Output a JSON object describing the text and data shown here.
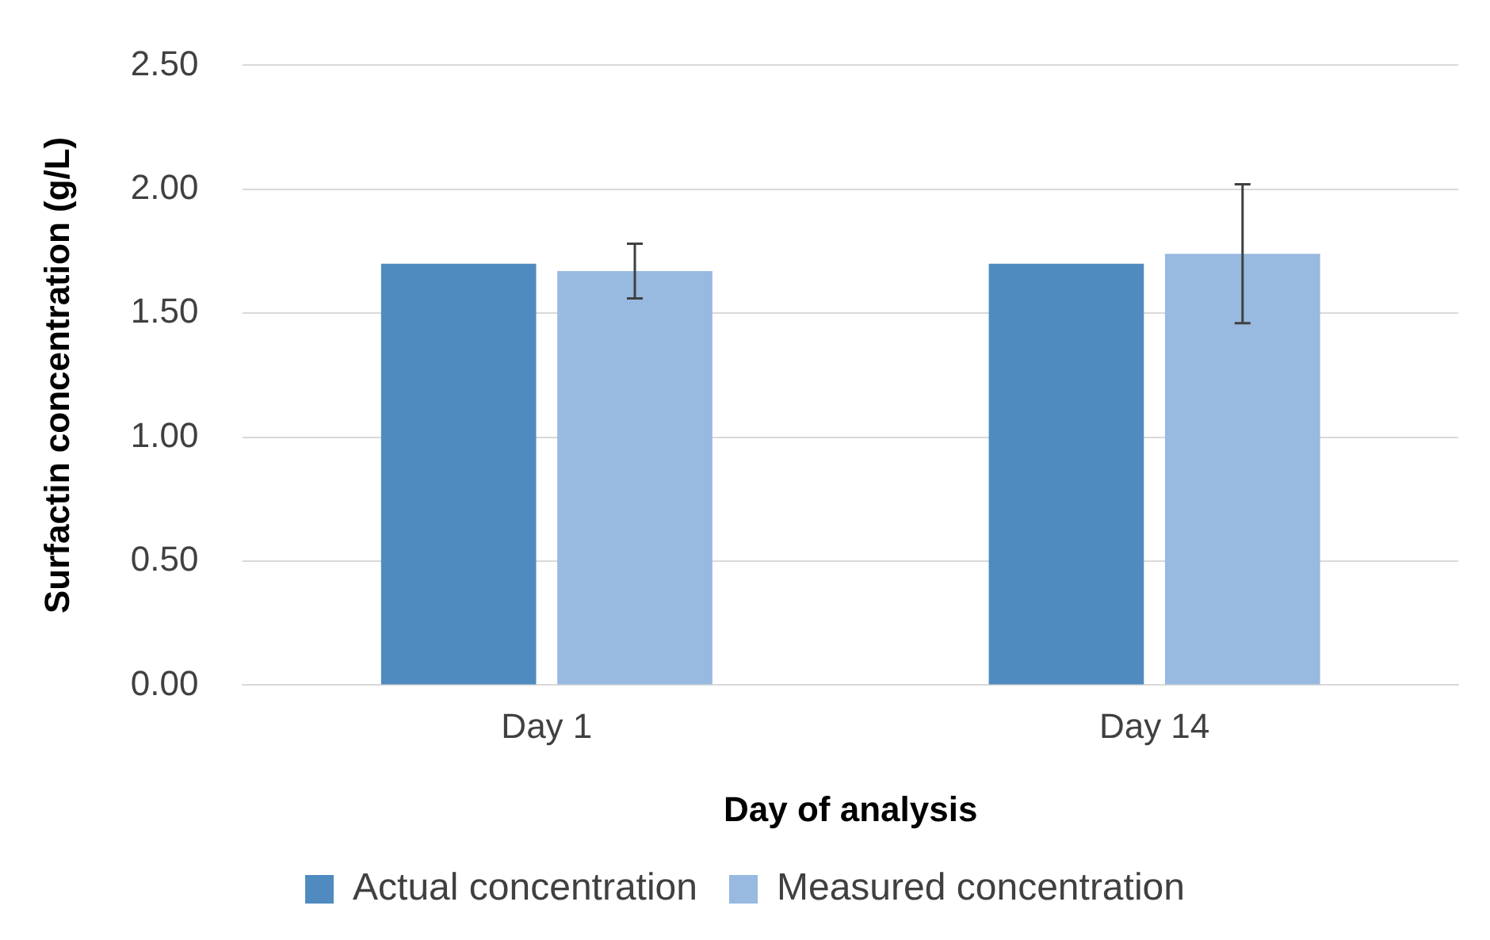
{
  "chart_data": {
    "type": "bar",
    "xlabel": "Day of analysis",
    "ylabel": "Surfactin concentration (g/L)",
    "categories": [
      "Day 1",
      "Day 14"
    ],
    "series": [
      {
        "name": "Actual concentration",
        "color": "#4f8bbf",
        "values": [
          1.7,
          1.7
        ]
      },
      {
        "name": "Measured concentration",
        "color": "#98b9e0",
        "values": [
          1.67,
          1.74
        ],
        "errors": [
          [
            1.56,
            1.78
          ],
          [
            1.46,
            2.02
          ]
        ]
      }
    ],
    "ylim": [
      0,
      2.5
    ],
    "yticks": [
      {
        "value": 0,
        "label": "0.00"
      },
      {
        "value": 0.5,
        "label": "0.50"
      },
      {
        "value": 1,
        "label": "1.00"
      },
      {
        "value": 1.5,
        "label": "1.50"
      },
      {
        "value": 2,
        "label": "2.00"
      },
      {
        "value": 2.5,
        "label": "2.50"
      }
    ],
    "grid": "y",
    "legend": "bottom"
  }
}
